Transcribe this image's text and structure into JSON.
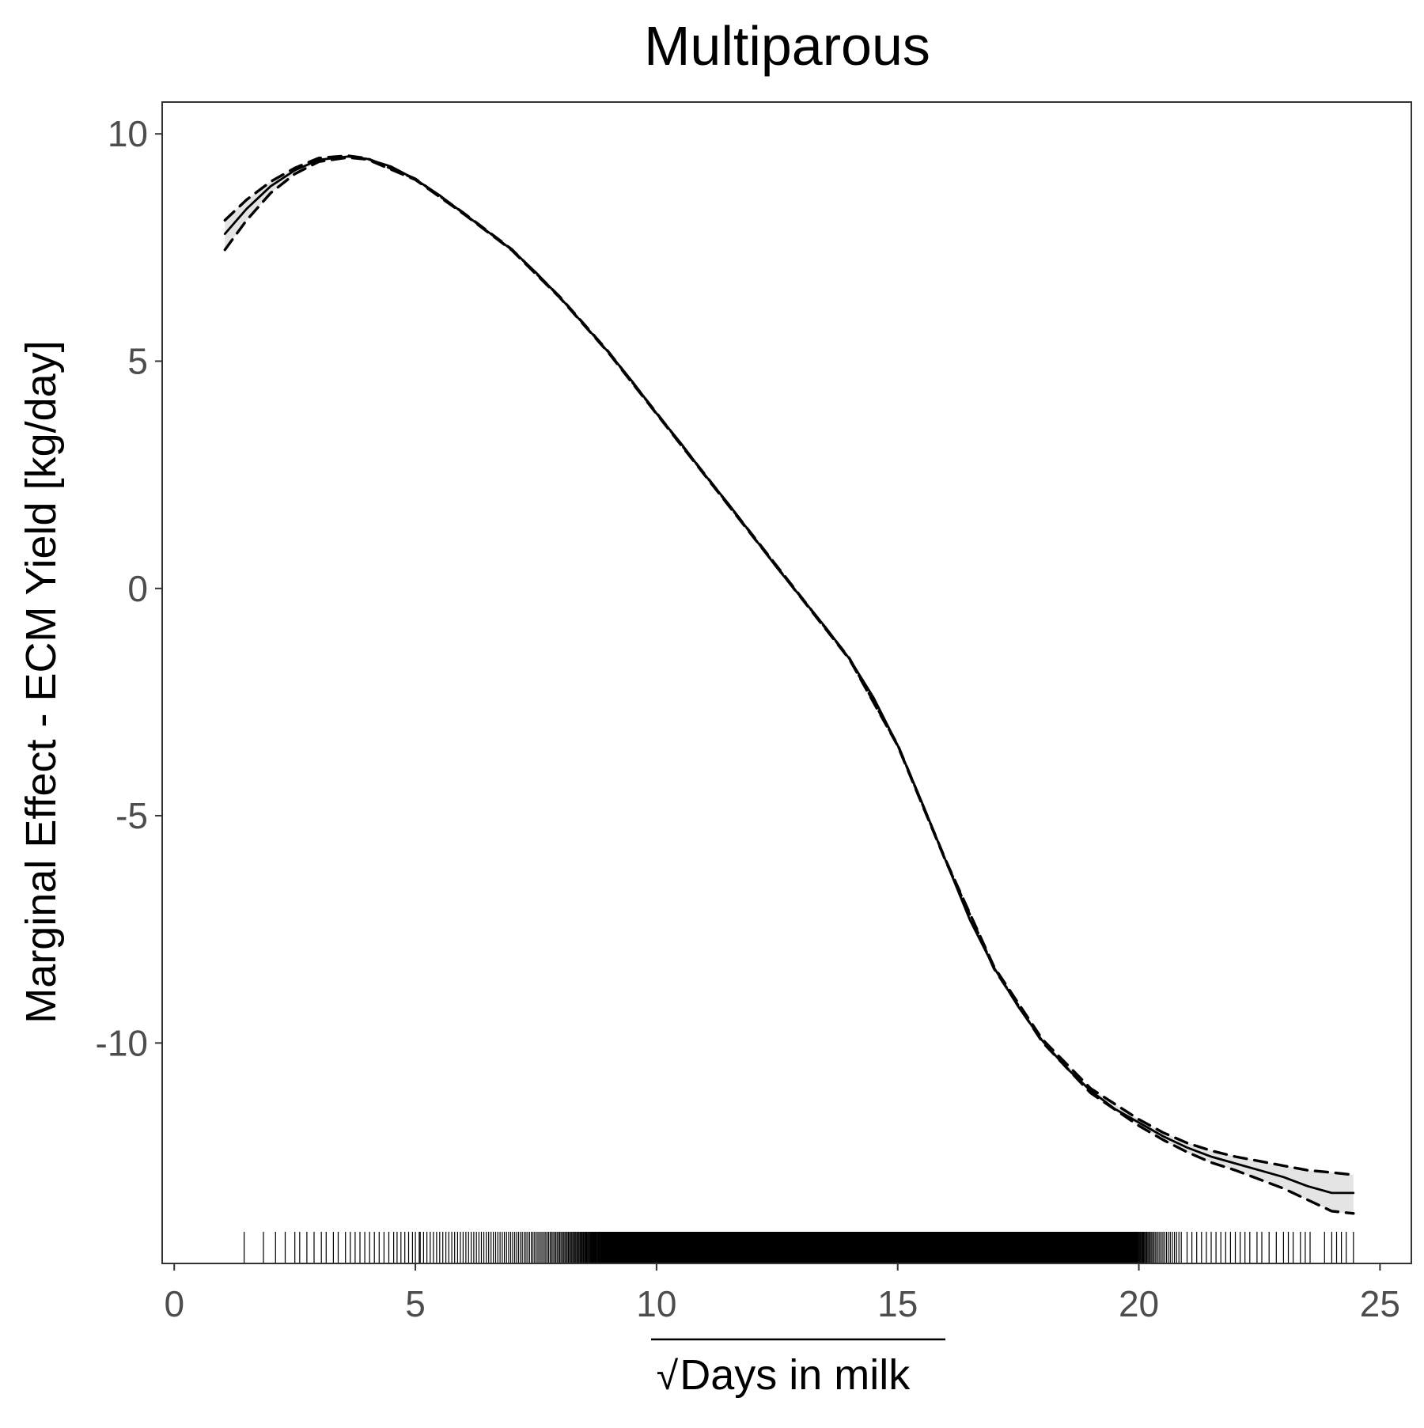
{
  "chart_data": {
    "type": "line",
    "title": "Multiparous",
    "xlabel": "Days in milk",
    "xlabel_prefix": "√",
    "ylabel": "Marginal Effect - ECM Yield [kg/day]",
    "xlim": [
      -0.25,
      25.65
    ],
    "ylim": [
      -14.85,
      10.7
    ],
    "x_ticks": [
      {
        "value": 0,
        "label": "0"
      },
      {
        "value": 5,
        "label": "5"
      },
      {
        "value": 10,
        "label": "10"
      },
      {
        "value": 15,
        "label": "15"
      },
      {
        "value": 20,
        "label": "20"
      },
      {
        "value": 25,
        "label": "25"
      }
    ],
    "y_ticks": [
      {
        "value": 10,
        "label": "10"
      },
      {
        "value": 5,
        "label": "5"
      },
      {
        "value": 0,
        "label": "0"
      },
      {
        "value": -5,
        "label": "-5"
      },
      {
        "value": -10,
        "label": "-10"
      }
    ],
    "grid": false,
    "legend": "none",
    "colors": {
      "line": "#000000",
      "ribbon": "#d9d9d9",
      "frame": "#333333",
      "tick_label": "#4d4d4d"
    },
    "series": [
      {
        "role": "estimate",
        "style": "solid",
        "points": [
          [
            1.05,
            7.8
          ],
          [
            1.5,
            8.35
          ],
          [
            2.0,
            8.85
          ],
          [
            2.5,
            9.2
          ],
          [
            3.0,
            9.43
          ],
          [
            3.6,
            9.5
          ],
          [
            4.0,
            9.45
          ],
          [
            4.5,
            9.28
          ],
          [
            5.0,
            9.0
          ],
          [
            5.5,
            8.65
          ],
          [
            6.0,
            8.25
          ],
          [
            6.5,
            7.85
          ],
          [
            7.0,
            7.45
          ],
          [
            7.5,
            6.95
          ],
          [
            8.0,
            6.4
          ],
          [
            8.5,
            5.8
          ],
          [
            9.0,
            5.2
          ],
          [
            9.5,
            4.55
          ],
          [
            10.0,
            3.85
          ],
          [
            10.5,
            3.2
          ],
          [
            11.0,
            2.5
          ],
          [
            11.5,
            1.85
          ],
          [
            12.0,
            1.15
          ],
          [
            12.5,
            0.45
          ],
          [
            13.0,
            -0.2
          ],
          [
            13.5,
            -0.85
          ],
          [
            14.0,
            -1.55
          ],
          [
            14.5,
            -2.4
          ],
          [
            15.0,
            -3.45
          ],
          [
            15.5,
            -4.7
          ],
          [
            16.0,
            -6.0
          ],
          [
            16.5,
            -7.3
          ],
          [
            17.0,
            -8.35
          ],
          [
            17.5,
            -9.2
          ],
          [
            18.0,
            -9.95
          ],
          [
            18.5,
            -10.55
          ],
          [
            19.0,
            -11.05
          ],
          [
            19.5,
            -11.45
          ],
          [
            20.0,
            -11.75
          ],
          [
            20.5,
            -12.05
          ],
          [
            21.0,
            -12.3
          ],
          [
            21.5,
            -12.5
          ],
          [
            22.0,
            -12.65
          ],
          [
            22.5,
            -12.8
          ],
          [
            23.0,
            -12.95
          ],
          [
            23.5,
            -13.15
          ],
          [
            24.0,
            -13.3
          ],
          [
            24.45,
            -13.3
          ]
        ]
      },
      {
        "role": "upper-bound",
        "style": "dashed",
        "points": [
          [
            1.05,
            8.1
          ],
          [
            1.5,
            8.55
          ],
          [
            2.0,
            8.95
          ],
          [
            2.5,
            9.25
          ],
          [
            3.0,
            9.47
          ],
          [
            3.6,
            9.52
          ],
          [
            4.0,
            9.46
          ],
          [
            5.0,
            9.01
          ],
          [
            6.0,
            8.26
          ],
          [
            7.0,
            7.46
          ],
          [
            8.0,
            6.41
          ],
          [
            9.0,
            5.21
          ],
          [
            10.0,
            3.86
          ],
          [
            11.0,
            2.51
          ],
          [
            12.0,
            1.16
          ],
          [
            13.0,
            -0.19
          ],
          [
            14.0,
            -1.54
          ],
          [
            15.0,
            -3.44
          ],
          [
            16.0,
            -5.99
          ],
          [
            17.0,
            -8.33
          ],
          [
            18.0,
            -9.92
          ],
          [
            19.0,
            -11.0
          ],
          [
            20.0,
            -11.68
          ],
          [
            20.5,
            -11.97
          ],
          [
            21.0,
            -12.2
          ],
          [
            21.5,
            -12.37
          ],
          [
            22.0,
            -12.5
          ],
          [
            22.5,
            -12.6
          ],
          [
            23.0,
            -12.7
          ],
          [
            23.5,
            -12.8
          ],
          [
            24.0,
            -12.85
          ],
          [
            24.45,
            -12.9
          ]
        ]
      },
      {
        "role": "lower-bound",
        "style": "dashed",
        "points": [
          [
            1.05,
            7.45
          ],
          [
            1.5,
            8.1
          ],
          [
            2.0,
            8.7
          ],
          [
            2.5,
            9.12
          ],
          [
            3.0,
            9.39
          ],
          [
            3.6,
            9.48
          ],
          [
            4.0,
            9.44
          ],
          [
            5.0,
            8.99
          ],
          [
            6.0,
            8.24
          ],
          [
            7.0,
            7.44
          ],
          [
            8.0,
            6.39
          ],
          [
            9.0,
            5.19
          ],
          [
            10.0,
            3.84
          ],
          [
            11.0,
            2.49
          ],
          [
            12.0,
            1.14
          ],
          [
            13.0,
            -0.21
          ],
          [
            14.0,
            -1.56
          ],
          [
            15.0,
            -3.46
          ],
          [
            16.0,
            -6.01
          ],
          [
            17.0,
            -8.37
          ],
          [
            18.0,
            -9.98
          ],
          [
            19.0,
            -11.1
          ],
          [
            20.0,
            -11.82
          ],
          [
            20.5,
            -12.13
          ],
          [
            21.0,
            -12.4
          ],
          [
            21.5,
            -12.63
          ],
          [
            22.0,
            -12.8
          ],
          [
            22.5,
            -13.0
          ],
          [
            23.0,
            -13.2
          ],
          [
            23.5,
            -13.45
          ],
          [
            24.0,
            -13.7
          ],
          [
            24.45,
            -13.75
          ]
        ]
      }
    ],
    "rug": {
      "sparse_x": [
        1.45,
        1.85,
        2.1,
        2.3,
        2.5,
        2.6,
        2.75,
        2.9,
        3.05,
        3.15,
        3.3,
        3.4,
        3.55,
        3.65,
        3.75,
        3.85,
        3.95,
        4.05,
        4.15,
        4.25,
        4.35,
        4.45,
        4.55,
        4.62,
        4.7,
        4.78,
        4.86,
        4.94,
        5.0,
        5.08
      ],
      "dense_from": 5.1,
      "dense_to": 20.9,
      "dense_step_start": 0.07,
      "solid_from": 9.85,
      "solid_to": 19.9,
      "tail_x": [
        21.0,
        21.1,
        21.2,
        21.3,
        21.4,
        21.5,
        21.6,
        21.7,
        21.8,
        21.9,
        22.0,
        22.1,
        22.2,
        22.3,
        22.45,
        22.55,
        22.7,
        22.85,
        23.0,
        23.1,
        23.2,
        23.35,
        23.45,
        23.55,
        23.85,
        24.0,
        24.1,
        24.2,
        24.3,
        24.45
      ]
    }
  }
}
